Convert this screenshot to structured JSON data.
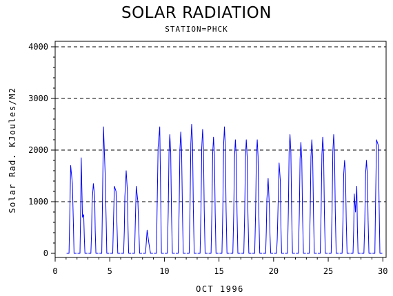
{
  "chart_data": {
    "type": "line",
    "title": "SOLAR RADIATION",
    "subtitle": "STATION=PHCK",
    "xlabel": "OCT 1996",
    "ylabel": "Solar Rad. KJoules/M2",
    "xlim": [
      0,
      30.3
    ],
    "ylim": [
      0,
      4000
    ],
    "xticks": [
      0,
      5,
      10,
      15,
      20,
      25,
      30
    ],
    "yticks": [
      0,
      1000,
      2000,
      3000,
      4000
    ],
    "grid": "horizontal dashed",
    "series": [
      {
        "color": "#0000ff",
        "daily_peaks": [
          {
            "day": 1,
            "values": [
              1700,
              1350
            ]
          },
          {
            "day": 2,
            "values": [
              1850,
              700,
              750
            ]
          },
          {
            "day": 3,
            "values": [
              1000,
              1350,
              1100
            ]
          },
          {
            "day": 4,
            "values": [
              2450,
              1550
            ]
          },
          {
            "day": 5,
            "values": [
              1300,
              1200
            ]
          },
          {
            "day": 6,
            "values": [
              1100,
              1600,
              1200
            ]
          },
          {
            "day": 7,
            "values": [
              1300,
              1000
            ]
          },
          {
            "day": 8,
            "values": [
              450,
              200
            ]
          },
          {
            "day": 9,
            "values": [
              2050,
              2450
            ]
          },
          {
            "day": 10,
            "values": [
              2300
            ]
          },
          {
            "day": 11,
            "values": [
              2350
            ]
          },
          {
            "day": 12,
            "values": [
              2500
            ]
          },
          {
            "day": 13,
            "values": [
              2400
            ]
          },
          {
            "day": 14,
            "values": [
              2250
            ]
          },
          {
            "day": 15,
            "values": [
              2450
            ]
          },
          {
            "day": 16,
            "values": [
              2200
            ]
          },
          {
            "day": 17,
            "values": [
              2200
            ]
          },
          {
            "day": 18,
            "values": [
              2200
            ]
          },
          {
            "day": 19,
            "values": [
              1050,
              1450,
              900
            ]
          },
          {
            "day": 20,
            "values": [
              700,
              1750,
              1400
            ]
          },
          {
            "day": 21,
            "values": [
              2300
            ]
          },
          {
            "day": 22,
            "values": [
              2150
            ]
          },
          {
            "day": 23,
            "values": [
              2200
            ]
          },
          {
            "day": 24,
            "values": [
              2250
            ]
          },
          {
            "day": 25,
            "values": [
              2300
            ]
          },
          {
            "day": 26,
            "values": [
              1800
            ]
          },
          {
            "day": 27,
            "values": [
              1150,
              800,
              1300
            ]
          },
          {
            "day": 28,
            "values": [
              1800
            ]
          },
          {
            "day": 29,
            "values": [
              2200,
              2100
            ]
          }
        ]
      }
    ]
  }
}
